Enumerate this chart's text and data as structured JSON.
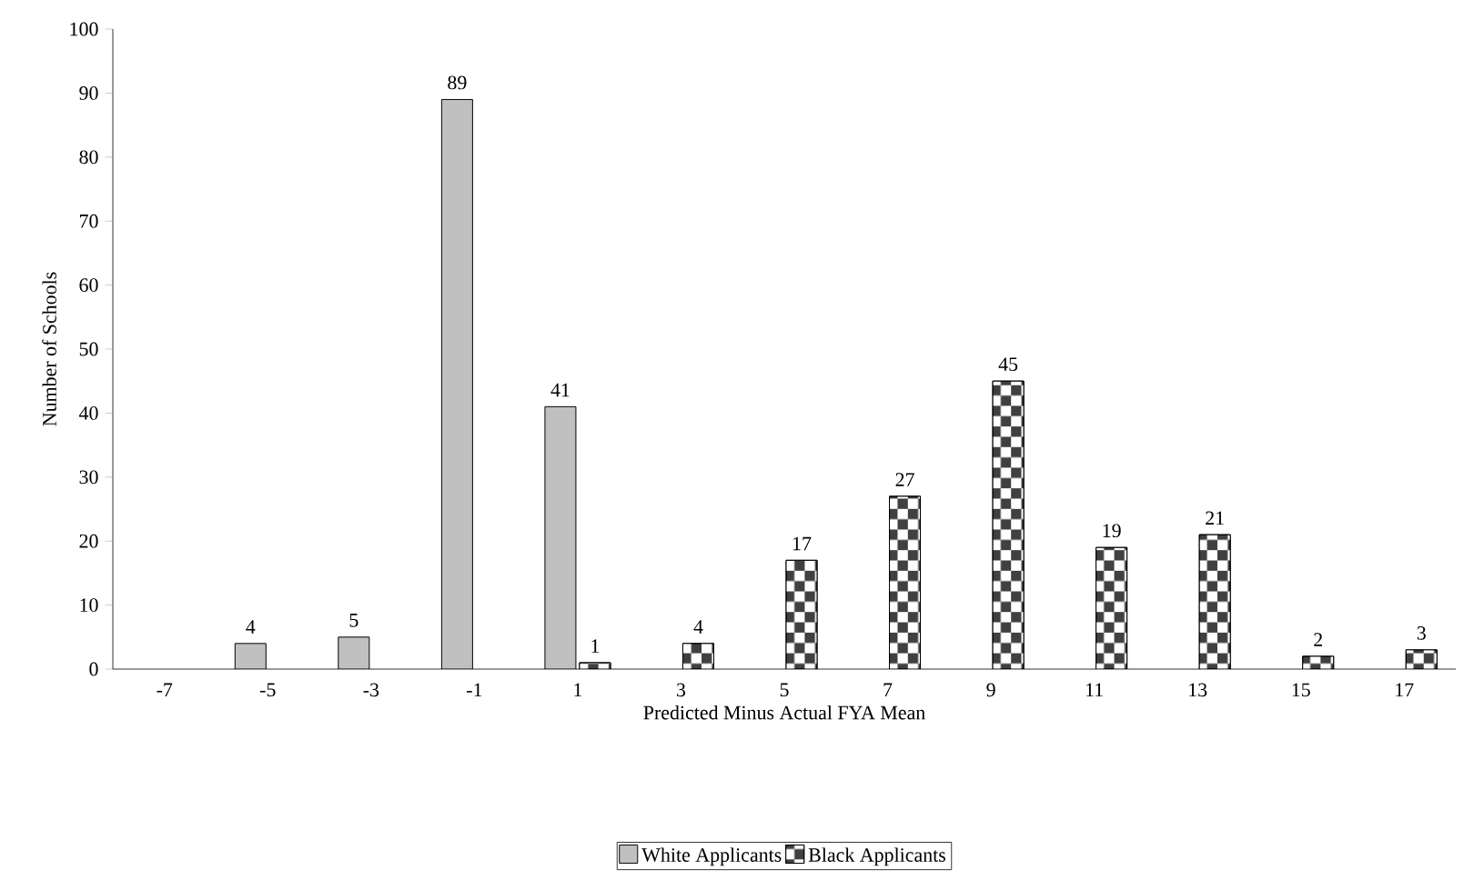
{
  "chart_data": {
    "type": "bar",
    "xlabel": "Predicted Minus Actual FYA Mean",
    "ylabel": "Number of Schools",
    "categories": [
      "-7",
      "-5",
      "-3",
      "-1",
      "1",
      "3",
      "5",
      "7",
      "9",
      "11",
      "13",
      "15",
      "17"
    ],
    "series": [
      {
        "name": "White Applicants",
        "color": "#c0c0c0",
        "values": [
          null,
          4,
          5,
          89,
          41,
          null,
          null,
          null,
          null,
          null,
          null,
          null,
          null
        ]
      },
      {
        "name": "Black Applicants",
        "color": "#404040",
        "values": [
          null,
          null,
          null,
          null,
          1,
          4,
          17,
          27,
          45,
          19,
          21,
          2,
          3
        ]
      }
    ],
    "ylim": [
      0,
      100
    ],
    "yticks": [
      0,
      10,
      20,
      30,
      40,
      50,
      60,
      70,
      80,
      90,
      100
    ],
    "data_labels": true,
    "legend": "bottom",
    "grid": false
  }
}
